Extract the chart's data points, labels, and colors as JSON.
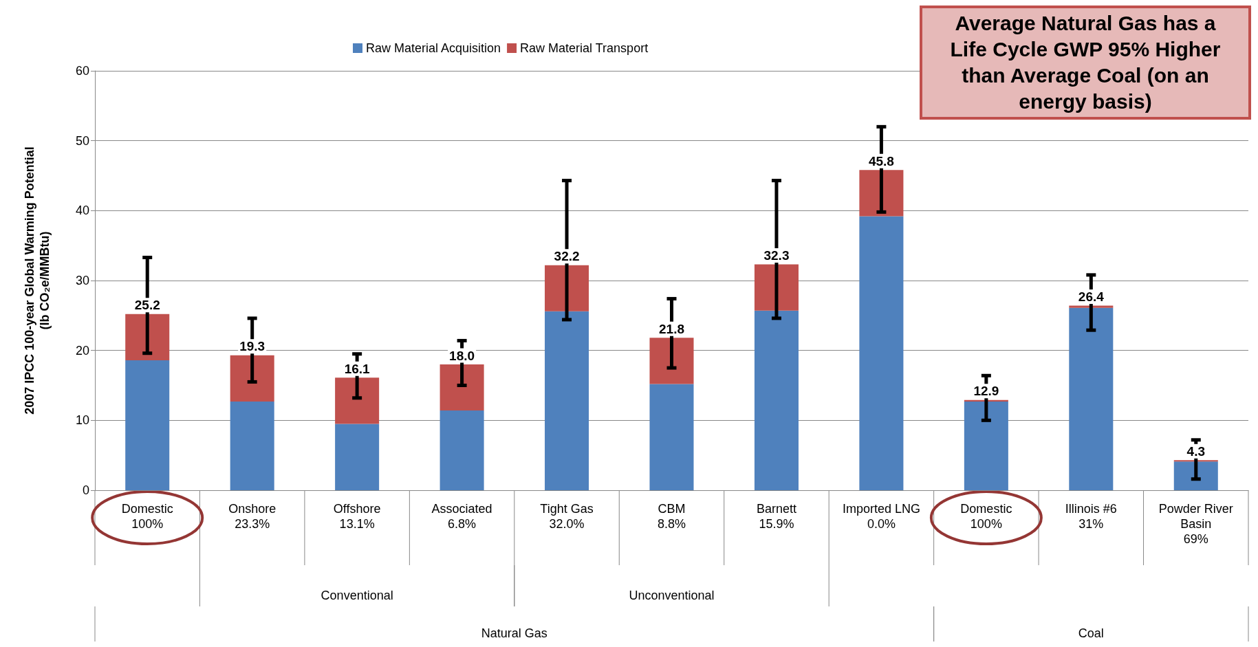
{
  "chart_data": {
    "type": "bar",
    "stacked": true,
    "ylabel": "2007 IPCC 100-year Global Warming Potential\n(lb CO₂e/MMBtu)",
    "categories": [
      "Domestic\n100%",
      "Onshore\n23.3%",
      "Offshore\n13.1%",
      "Associated\n6.8%",
      "Tight Gas\n32.0%",
      "CBM\n8.8%",
      "Barnett\n15.9%",
      "Imported LNG\n0.0%",
      "Domestic\n100%",
      "Illinois #6\n31%",
      "Powder River\nBasin\n69%"
    ],
    "series": [
      {
        "name": "Raw Material Acquisition",
        "color": "#4f81bd",
        "values": [
          18.6,
          12.7,
          9.5,
          11.4,
          25.6,
          15.2,
          25.7,
          39.2,
          12.7,
          26.1,
          4.1
        ]
      },
      {
        "name": "Raw Material Transport",
        "color": "#c0504d",
        "values": [
          6.6,
          6.6,
          6.6,
          6.6,
          6.6,
          6.6,
          6.6,
          6.6,
          0.2,
          0.3,
          0.2
        ],
        "errors": [
          [
            19.6,
            33.3
          ],
          [
            15.5,
            24.6
          ],
          [
            13.2,
            19.5
          ],
          [
            15.0,
            21.4
          ],
          [
            24.4,
            44.3
          ],
          [
            17.5,
            27.4
          ],
          [
            24.6,
            44.3
          ],
          [
            39.8,
            52.0
          ],
          [
            10.0,
            16.4
          ],
          [
            22.9,
            30.8
          ],
          [
            1.6,
            7.2
          ]
        ]
      }
    ],
    "totals": [
      "25.2",
      "19.3",
      "16.1",
      "18.0",
      "32.2",
      "21.8",
      "32.3",
      "45.8",
      "12.9",
      "26.4",
      "4.3"
    ],
    "ylim": [
      0,
      60
    ],
    "yticks": [
      0,
      10,
      20,
      30,
      40,
      50,
      60
    ],
    "grid": "y",
    "legend": "top",
    "annotations": [
      "Conventional",
      "Unconventional",
      "Natural Gas",
      "Coal",
      "Average Natural Gas has a Life Cycle GWP 95% Higher than Average Coal (on an energy basis)"
    ]
  }
}
